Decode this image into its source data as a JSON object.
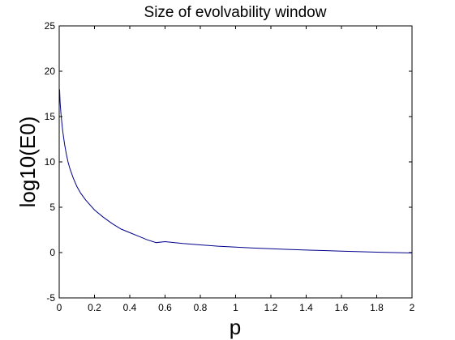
{
  "chart_data": {
    "type": "line",
    "title": "Size of evolvability window",
    "xlabel": "p",
    "ylabel": "log10(E0)",
    "xlim": [
      0,
      2
    ],
    "ylim": [
      -5,
      25
    ],
    "grid": false,
    "x_ticks": [
      "0",
      "0.2",
      "0.4",
      "0.6",
      "0.8",
      "1",
      "1.2",
      "1.4",
      "1.6",
      "1.8",
      "2"
    ],
    "x_tick_values": [
      0,
      0.2,
      0.4,
      0.6,
      0.8,
      1.0,
      1.2,
      1.4,
      1.6,
      1.8,
      2.0
    ],
    "y_ticks": [
      "-5",
      "0",
      "5",
      "10",
      "15",
      "20",
      "25"
    ],
    "y_tick_values": [
      -5,
      0,
      5,
      10,
      15,
      20,
      25
    ],
    "series": [
      {
        "color": "#00008b",
        "x": [
          0.002,
          0.005,
          0.01,
          0.015,
          0.02,
          0.03,
          0.04,
          0.05,
          0.06,
          0.08,
          0.1,
          0.12,
          0.15,
          0.2,
          0.25,
          0.3,
          0.35,
          0.4,
          0.45,
          0.5,
          0.55,
          0.6,
          0.7,
          0.8,
          0.9,
          1.0,
          1.1,
          1.2,
          1.3,
          1.4,
          1.5,
          1.6,
          1.7,
          1.8,
          1.9,
          2.0
        ],
        "y": [
          18.0,
          16.6,
          15.3,
          14.3,
          13.4,
          12.0,
          10.9,
          10.0,
          9.3,
          8.2,
          7.3,
          6.6,
          5.8,
          4.7,
          3.9,
          3.2,
          2.6,
          2.2,
          1.8,
          1.4,
          1.1,
          1.2,
          1.0,
          0.85,
          0.7,
          0.6,
          0.5,
          0.42,
          0.35,
          0.28,
          0.22,
          0.16,
          0.1,
          0.05,
          0.0,
          -0.05
        ]
      }
    ]
  }
}
